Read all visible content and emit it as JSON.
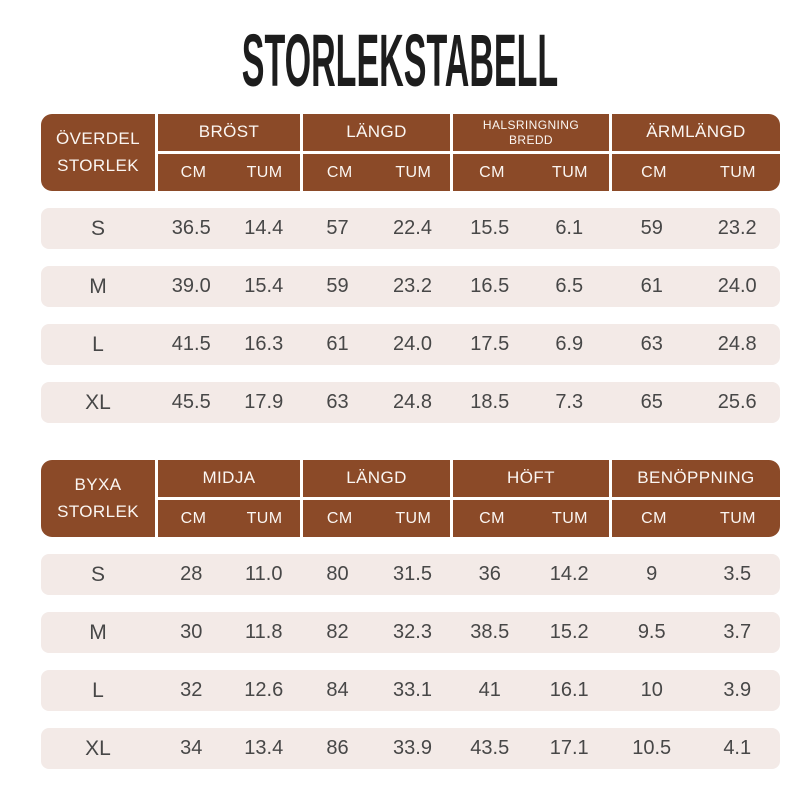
{
  "header": {
    "title": "STORLEKSTABELL"
  },
  "colors": {
    "header_bg": "#8B4A28",
    "header_text": "#FBF6F2",
    "row_bg": "#F3EAE7",
    "value_text": "#474747",
    "title_text": "#1D1D1D",
    "page_bg": "#FFFFFF"
  },
  "units": {
    "cm": "CM",
    "tum": "TUM"
  },
  "tables": [
    {
      "name": "ÖVERDEL STORLEK",
      "label_lines": [
        "ÖVERDEL",
        "STORLEK"
      ],
      "groups": [
        {
          "lines": [
            "BRÖST"
          ]
        },
        {
          "lines": [
            "LÄNGD"
          ]
        },
        {
          "lines": [
            "HALSRINGNING",
            "BREDD"
          ]
        },
        {
          "lines": [
            "ÄRMLÄNGD"
          ]
        }
      ],
      "rows": [
        {
          "size": "S",
          "values": [
            "36.5",
            "14.4",
            "57",
            "22.4",
            "15.5",
            "6.1",
            "59",
            "23.2"
          ]
        },
        {
          "size": "M",
          "values": [
            "39.0",
            "15.4",
            "59",
            "23.2",
            "16.5",
            "6.5",
            "61",
            "24.0"
          ]
        },
        {
          "size": "L",
          "values": [
            "41.5",
            "16.3",
            "61",
            "24.0",
            "17.5",
            "6.9",
            "63",
            "24.8"
          ]
        },
        {
          "size": "XL",
          "values": [
            "45.5",
            "17.9",
            "63",
            "24.8",
            "18.5",
            "7.3",
            "65",
            "25.6"
          ]
        }
      ]
    },
    {
      "name": "BYXA STORLEK",
      "label_lines": [
        "BYXA",
        "STORLEK"
      ],
      "groups": [
        {
          "lines": [
            "MIDJA"
          ]
        },
        {
          "lines": [
            "LÄNGD"
          ]
        },
        {
          "lines": [
            "HÖFT"
          ]
        },
        {
          "lines": [
            "BENÖPPNING"
          ]
        }
      ],
      "rows": [
        {
          "size": "S",
          "values": [
            "28",
            "11.0",
            "80",
            "31.5",
            "36",
            "14.2",
            "9",
            "3.5"
          ]
        },
        {
          "size": "M",
          "values": [
            "30",
            "11.8",
            "82",
            "32.3",
            "38.5",
            "15.2",
            "9.5",
            "3.7"
          ]
        },
        {
          "size": "L",
          "values": [
            "32",
            "12.6",
            "84",
            "33.1",
            "41",
            "16.1",
            "10",
            "3.9"
          ]
        },
        {
          "size": "XL",
          "values": [
            "34",
            "13.4",
            "86",
            "33.9",
            "43.5",
            "17.1",
            "10.5",
            "4.1"
          ]
        }
      ]
    }
  ],
  "chart_data": [
    {
      "type": "table",
      "title": "STORLEKSTABELL",
      "table_name": "ÖVERDEL STORLEK",
      "columns": [
        "STORLEK",
        "BRÖST CM",
        "BRÖST TUM",
        "LÄNGD CM",
        "LÄNGD TUM",
        "HALSRINGNING BREDD CM",
        "HALSRINGNING BREDD TUM",
        "ÄRMLÄNGD CM",
        "ÄRMLÄNGD TUM"
      ],
      "rows": [
        [
          "S",
          36.5,
          14.4,
          57,
          22.4,
          15.5,
          6.1,
          59,
          23.2
        ],
        [
          "M",
          39.0,
          15.4,
          59,
          23.2,
          16.5,
          6.5,
          61,
          24.0
        ],
        [
          "L",
          41.5,
          16.3,
          61,
          24.0,
          17.5,
          6.9,
          63,
          24.8
        ],
        [
          "XL",
          45.5,
          17.9,
          63,
          24.8,
          18.5,
          7.3,
          65,
          25.6
        ]
      ]
    },
    {
      "type": "table",
      "title": "STORLEKSTABELL",
      "table_name": "BYXA STORLEK",
      "columns": [
        "STORLEK",
        "MIDJA CM",
        "MIDJA TUM",
        "LÄNGD CM",
        "LÄNGD TUM",
        "HÖFT CM",
        "HÖFT TUM",
        "BENÖPPNING CM",
        "BENÖPPNING TUM"
      ],
      "rows": [
        [
          "S",
          28,
          11.0,
          80,
          31.5,
          36,
          14.2,
          9,
          3.5
        ],
        [
          "M",
          30,
          11.8,
          82,
          32.3,
          38.5,
          15.2,
          9.5,
          3.7
        ],
        [
          "L",
          32,
          12.6,
          84,
          33.1,
          41,
          16.1,
          10,
          3.9
        ],
        [
          "XL",
          34,
          13.4,
          86,
          33.9,
          43.5,
          17.1,
          10.5,
          4.1
        ]
      ]
    }
  ]
}
